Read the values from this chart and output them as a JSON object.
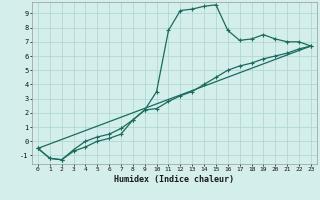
{
  "title": "",
  "xlabel": "Humidex (Indice chaleur)",
  "bg_color": "#d4eeec",
  "grid_color": "#b2d8d4",
  "line_color": "#1a6b5e",
  "xlim": [
    -0.5,
    23.5
  ],
  "ylim": [
    -1.6,
    9.8
  ],
  "yticks": [
    -1,
    0,
    1,
    2,
    3,
    4,
    5,
    6,
    7,
    8,
    9
  ],
  "xticks": [
    0,
    1,
    2,
    3,
    4,
    5,
    6,
    7,
    8,
    9,
    10,
    11,
    12,
    13,
    14,
    15,
    16,
    17,
    18,
    19,
    20,
    21,
    22,
    23
  ],
  "curve1_x": [
    0,
    1,
    2,
    3,
    4,
    5,
    6,
    7,
    8,
    9,
    10,
    11,
    12,
    13,
    14,
    15,
    16,
    17,
    18,
    19,
    20,
    21,
    22,
    23
  ],
  "curve1_y": [
    -0.5,
    -1.2,
    -1.3,
    -0.7,
    -0.4,
    0.0,
    0.2,
    0.5,
    1.5,
    2.2,
    3.5,
    7.8,
    9.2,
    9.3,
    9.5,
    9.6,
    7.8,
    7.1,
    7.2,
    7.5,
    7.2,
    7.0,
    7.0,
    6.7
  ],
  "curve2_x": [
    0,
    1,
    2,
    3,
    4,
    5,
    6,
    7,
    8,
    9,
    10,
    11,
    12,
    13,
    14,
    15,
    16,
    17,
    18,
    19,
    20,
    21,
    22,
    23
  ],
  "curve2_y": [
    -0.5,
    -1.2,
    -1.3,
    -0.6,
    0.0,
    0.3,
    0.5,
    0.9,
    1.5,
    2.2,
    2.3,
    2.8,
    3.2,
    3.5,
    4.0,
    4.5,
    5.0,
    5.3,
    5.5,
    5.8,
    6.0,
    6.2,
    6.5,
    6.7
  ],
  "curve3_x": [
    0,
    23
  ],
  "curve3_y": [
    -0.5,
    6.7
  ],
  "marker_size": 2.5,
  "linewidth": 0.9
}
